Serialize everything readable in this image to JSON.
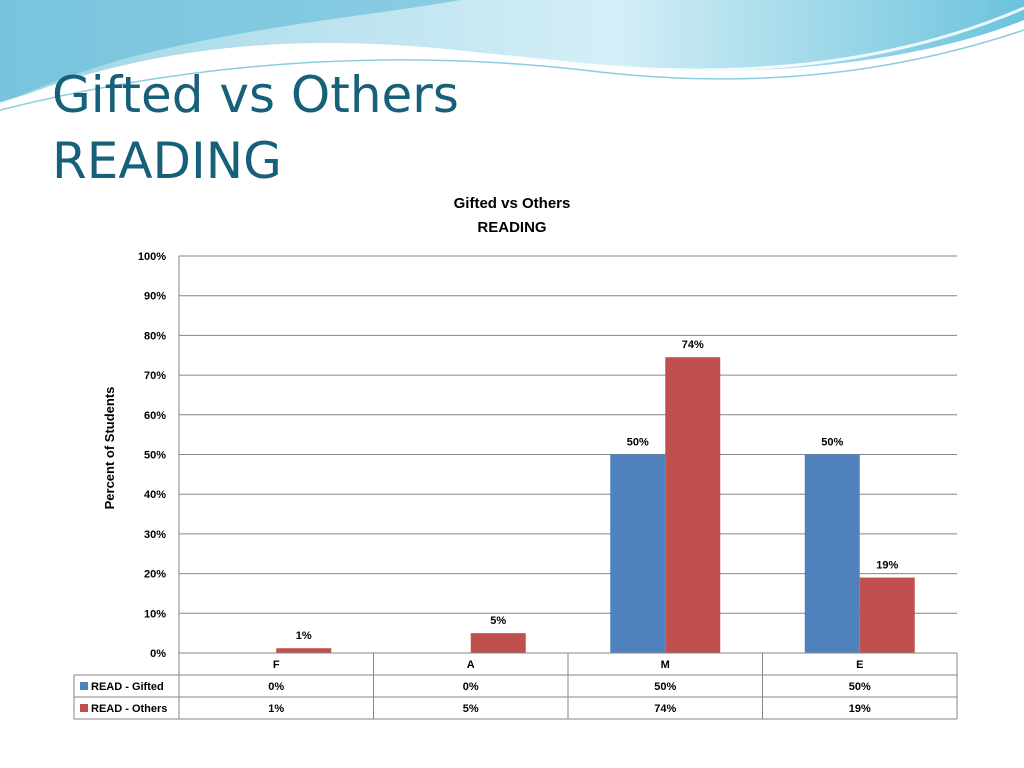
{
  "slide": {
    "title_line1": "Gifted vs Others",
    "title_line2": "READING"
  },
  "colors": {
    "title": "#17607a",
    "gifted": "#4f81bd",
    "others": "#c0504d",
    "grid": "#868686"
  },
  "chart_data": {
    "type": "bar",
    "title_lines": [
      "Gifted vs Others",
      "READING"
    ],
    "ylabel": "Percent of Students",
    "xlabel": "",
    "categories": [
      "F",
      "A",
      "M",
      "E"
    ],
    "ylim": [
      0,
      100
    ],
    "yticks": [
      "0%",
      "10%",
      "20%",
      "30%",
      "40%",
      "50%",
      "60%",
      "70%",
      "80%",
      "90%",
      "100%"
    ],
    "grid": true,
    "legend": "data-table",
    "series": [
      {
        "name": "READ - Gifted",
        "color": "#4f81bd",
        "values": [
          0,
          0,
          50,
          50
        ],
        "table_labels": [
          "0%",
          "0%",
          "50%",
          "50%"
        ],
        "data_labels": [
          "",
          "",
          "50%",
          "50%"
        ]
      },
      {
        "name": "READ - Others",
        "color": "#c0504d",
        "values": [
          1.2,
          5,
          74.5,
          19
        ],
        "table_labels": [
          "1%",
          "5%",
          "74%",
          "19%"
        ],
        "data_labels": [
          "1%",
          "5%",
          "74%",
          "19%"
        ]
      }
    ]
  }
}
